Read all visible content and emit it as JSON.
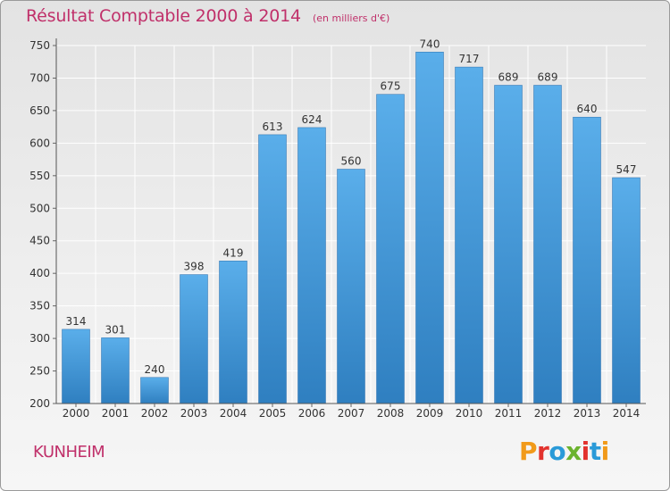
{
  "chart_data": {
    "type": "bar",
    "title": "Résultat Comptable 2000 à 2014",
    "subtitle": "(en milliers d'€)",
    "categories": [
      "2000",
      "2001",
      "2002",
      "2003",
      "2004",
      "2005",
      "2006",
      "2007",
      "2008",
      "2009",
      "2010",
      "2011",
      "2012",
      "2013",
      "2014"
    ],
    "values": [
      314,
      301,
      240,
      398,
      419,
      613,
      624,
      560,
      675,
      740,
      717,
      689,
      689,
      640,
      547
    ],
    "ylim": [
      200,
      750
    ],
    "yticks": [
      200,
      250,
      300,
      350,
      400,
      450,
      500,
      550,
      600,
      650,
      700,
      750
    ],
    "grid": true,
    "bar_color": "#3d8fd3"
  },
  "footer": {
    "commune": "KUNHEIM",
    "brand": "Proxiti",
    "brand_colors": [
      "#f19a1a",
      "#e2322d",
      "#2a9ad8",
      "#6bb32e",
      "#e2322d",
      "#2a9ad8",
      "#f19a1a"
    ]
  }
}
